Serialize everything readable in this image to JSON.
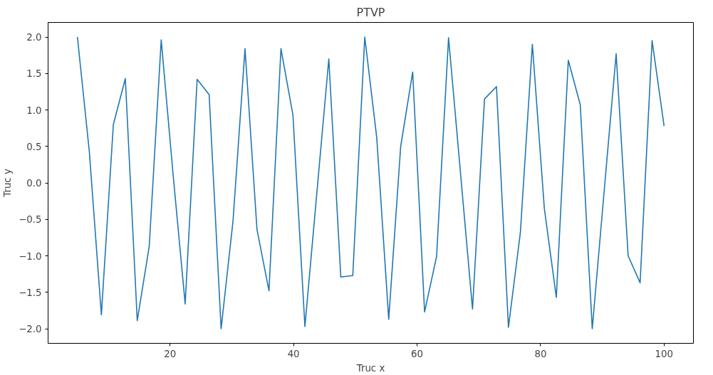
{
  "chart_data": {
    "type": "line",
    "title": "PTVP",
    "xlabel": "Truc x",
    "ylabel": "Truc y",
    "x": [
      5.0,
      6.94,
      8.88,
      10.82,
      12.76,
      14.69,
      16.63,
      18.57,
      20.51,
      22.45,
      24.39,
      26.33,
      28.27,
      30.2,
      32.14,
      34.08,
      36.02,
      37.96,
      39.9,
      41.84,
      43.78,
      45.71,
      47.65,
      49.59,
      51.53,
      53.47,
      55.41,
      57.35,
      59.29,
      61.22,
      63.16,
      65.1,
      67.04,
      68.98,
      70.92,
      72.86,
      74.8,
      76.73,
      78.67,
      80.61,
      82.55,
      84.49,
      86.43,
      88.37,
      90.31,
      92.24,
      94.18,
      96.12,
      98.06,
      100.0
    ],
    "series": [
      {
        "color": "#1f77b4",
        "values": [
          2.0,
          0.42,
          -1.81,
          0.8,
          1.43,
          -1.89,
          -0.87,
          1.96,
          0.1,
          -1.66,
          1.42,
          1.21,
          -2.0,
          -0.52,
          1.84,
          -0.64,
          -1.48,
          1.84,
          0.93,
          -1.97,
          -0.13,
          1.7,
          -1.29,
          -1.27,
          2.0,
          0.62,
          -1.87,
          0.5,
          1.52,
          -1.77,
          -1.01,
          1.99,
          0.13,
          -1.73,
          1.15,
          1.32,
          -1.98,
          -0.68,
          1.9,
          -0.35,
          -1.57,
          1.68,
          1.07,
          -2.0,
          -0.1,
          1.77,
          -1.0,
          -1.37,
          1.95,
          0.78
        ]
      }
    ],
    "xlim": [
      0.25,
      104.75
    ],
    "ylim": [
      -2.2,
      2.2
    ],
    "xticks": [
      20,
      40,
      60,
      80,
      100
    ],
    "yticks": [
      {
        "value": -2,
        "label": "−2.0"
      },
      {
        "value": -1.5,
        "label": "−1.5"
      },
      {
        "value": -1,
        "label": "−1.0"
      },
      {
        "value": -0.5,
        "label": "−0.5"
      },
      {
        "value": 0,
        "label": "0.0"
      },
      {
        "value": 0.5,
        "label": "0.5"
      },
      {
        "value": 1,
        "label": "1.0"
      },
      {
        "value": 1.5,
        "label": "1.5"
      },
      {
        "value": 2,
        "label": "2.0"
      }
    ],
    "grid": false
  }
}
